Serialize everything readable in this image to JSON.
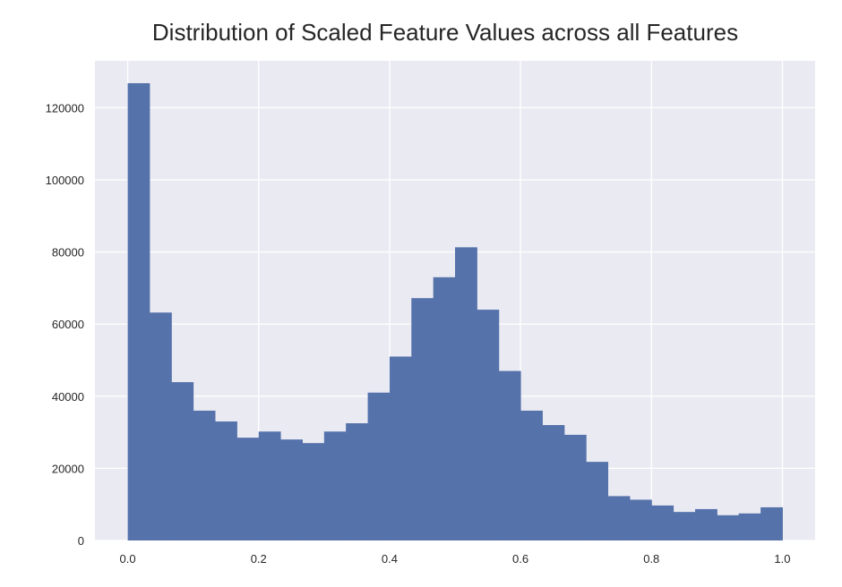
{
  "chart_data": {
    "type": "bar",
    "title": "Distribution of Scaled Feature Values across all Features",
    "xlabel": "",
    "ylabel": "",
    "xlim": [
      -0.05,
      1.05
    ],
    "ylim": [
      0,
      133000
    ],
    "grid": true,
    "x_ticks": [
      "0.0",
      "0.2",
      "0.4",
      "0.6",
      "0.8",
      "1.0"
    ],
    "y_ticks": [
      "0",
      "20000",
      "40000",
      "60000",
      "80000",
      "100000",
      "120000"
    ],
    "bin_edges": [
      0.0,
      0.0333,
      0.0667,
      0.1,
      0.1333,
      0.1667,
      0.2,
      0.2333,
      0.2667,
      0.3,
      0.3333,
      0.3667,
      0.4,
      0.4333,
      0.4667,
      0.5,
      0.5333,
      0.5667,
      0.6,
      0.6333,
      0.6667,
      0.7,
      0.7333,
      0.7667,
      0.8,
      0.8333,
      0.8667,
      0.9,
      0.9333,
      0.9667,
      1.0
    ],
    "values": [
      126800,
      63200,
      43900,
      36000,
      33000,
      28500,
      30200,
      28000,
      27000,
      30200,
      32500,
      41000,
      51000,
      67200,
      73000,
      81300,
      64000,
      47000,
      36000,
      32000,
      29300,
      21800,
      12300,
      11300,
      9700,
      7900,
      8700,
      7000,
      7500,
      9200
    ],
    "colors": {
      "bar": "#5572ab",
      "background": "#eaeaf2",
      "grid": "#ffffff"
    }
  }
}
